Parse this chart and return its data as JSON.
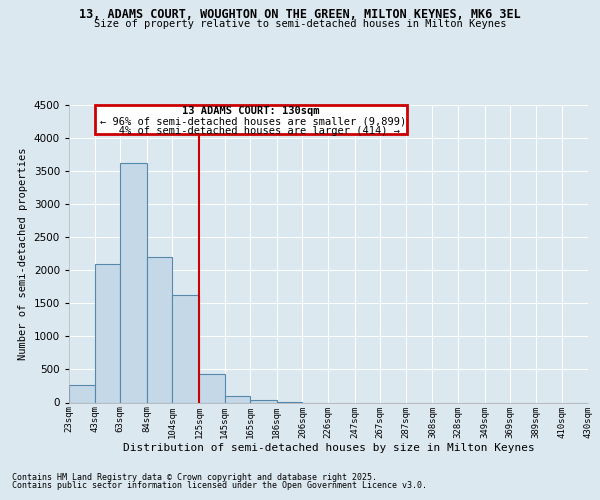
{
  "title": "13, ADAMS COURT, WOUGHTON ON THE GREEN, MILTON KEYNES, MK6 3EL",
  "subtitle": "Size of property relative to semi-detached houses in Milton Keynes",
  "xlabel": "Distribution of semi-detached houses by size in Milton Keynes",
  "ylabel": "Number of semi-detached properties",
  "background_color": "#dce8f0",
  "bar_color": "#c5d8e8",
  "bar_edge_color": "#5588aa",
  "annotation_title": "13 ADAMS COURT: 130sqm",
  "annotation_line1": "← 96% of semi-detached houses are smaller (9,899)",
  "annotation_line2": "   4% of semi-detached houses are larger (414) →",
  "property_line_x": 125,
  "annotation_box_color": "#ffffff",
  "annotation_box_edge": "#cc0000",
  "footer_line1": "Contains HM Land Registry data © Crown copyright and database right 2025.",
  "footer_line2": "Contains public sector information licensed under the Open Government Licence v3.0.",
  "bins": [
    23,
    43,
    63,
    84,
    104,
    125,
    145,
    165,
    186,
    206,
    226,
    247,
    267,
    287,
    308,
    328,
    349,
    369,
    389,
    410,
    430
  ],
  "bin_labels": [
    "23sqm",
    "43sqm",
    "63sqm",
    "84sqm",
    "104sqm",
    "125sqm",
    "145sqm",
    "165sqm",
    "186sqm",
    "206sqm",
    "226sqm",
    "247sqm",
    "267sqm",
    "287sqm",
    "308sqm",
    "328sqm",
    "349sqm",
    "369sqm",
    "389sqm",
    "410sqm",
    "430sqm"
  ],
  "values": [
    270,
    2100,
    3620,
    2200,
    1620,
    430,
    100,
    40,
    15,
    0,
    0,
    0,
    0,
    0,
    0,
    0,
    0,
    0,
    0,
    0
  ],
  "ylim": [
    0,
    4500
  ],
  "yticks": [
    0,
    500,
    1000,
    1500,
    2000,
    2500,
    3000,
    3500,
    4000,
    4500
  ]
}
